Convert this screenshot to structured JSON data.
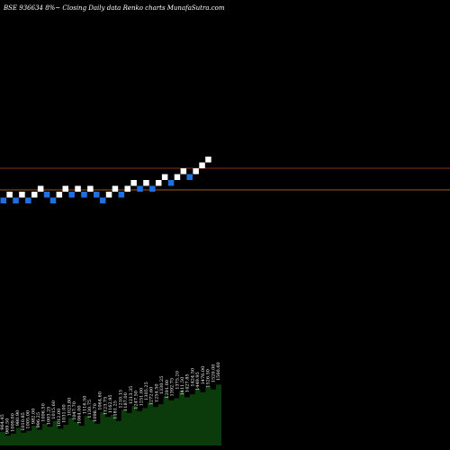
{
  "header": {
    "title": "BSE 936634  8%~  Closing Daily data  Renko  charts MunafaSutra.com"
  },
  "colors": {
    "background": "#000000",
    "up_brick": "#ffffff",
    "down_brick": "#1e6fe0",
    "resistance_line": "#c0392b",
    "support_line": "#d4771a",
    "volume_fill": "#0b3a0b"
  },
  "chart_data": {
    "type": "renko",
    "bricks": [
      {
        "dir": "down",
        "level": 0
      },
      {
        "dir": "up",
        "level": 1
      },
      {
        "dir": "down",
        "level": 0
      },
      {
        "dir": "up",
        "level": 1
      },
      {
        "dir": "down",
        "level": 0
      },
      {
        "dir": "up",
        "level": 1
      },
      {
        "dir": "up",
        "level": 2
      },
      {
        "dir": "down",
        "level": 1
      },
      {
        "dir": "down",
        "level": 0
      },
      {
        "dir": "up",
        "level": 1
      },
      {
        "dir": "up",
        "level": 2
      },
      {
        "dir": "down",
        "level": 1
      },
      {
        "dir": "up",
        "level": 2
      },
      {
        "dir": "down",
        "level": 1
      },
      {
        "dir": "up",
        "level": 2
      },
      {
        "dir": "down",
        "level": 1
      },
      {
        "dir": "down",
        "level": 0
      },
      {
        "dir": "up",
        "level": 1
      },
      {
        "dir": "up",
        "level": 2
      },
      {
        "dir": "down",
        "level": 1
      },
      {
        "dir": "up",
        "level": 2
      },
      {
        "dir": "up",
        "level": 3
      },
      {
        "dir": "down",
        "level": 2
      },
      {
        "dir": "up",
        "level": 3
      },
      {
        "dir": "down",
        "level": 2
      },
      {
        "dir": "up",
        "level": 3
      },
      {
        "dir": "up",
        "level": 4
      },
      {
        "dir": "down",
        "level": 3
      },
      {
        "dir": "up",
        "level": 4
      },
      {
        "dir": "up",
        "level": 5
      },
      {
        "dir": "down",
        "level": 4
      },
      {
        "dir": "up",
        "level": 5
      },
      {
        "dir": "up",
        "level": 6
      },
      {
        "dir": "up",
        "level": 7
      }
    ],
    "resistance_level": 5.6,
    "support_level": 1.5,
    "volume_labels": [
      "964.45",
      "969.50",
      "1009.00",
      "980.90",
      "1010.85",
      "1005.00",
      "982.00",
      "996.25",
      "1006.50",
      "1003.25",
      "1015.60",
      "1012.00",
      "1031.00",
      "1023.80",
      "1047.70",
      "1064.00",
      "1116.50",
      "1130.75",
      "1098.70",
      "1064.60",
      "1123.75",
      "1162.95",
      "1181.25",
      "1210.15",
      "1187.00",
      "1213.35",
      "1247.50",
      "1251.00",
      "1305.25",
      "1272.60",
      "1254.50",
      "1330.25",
      "1291.00",
      "1392.75",
      "1375.20",
      "1411.50",
      "1427.85",
      "1424.50",
      "1449.95",
      "1476.00",
      "1526.50",
      "1520.00",
      "1560.60"
    ],
    "volume_values": [
      14,
      10,
      12,
      18,
      13,
      15,
      20,
      16,
      22,
      19,
      25,
      17,
      21,
      28,
      24,
      20,
      30,
      26,
      22,
      34,
      29,
      31,
      25,
      36,
      33,
      40,
      35,
      38,
      44,
      39,
      42,
      50,
      46,
      48,
      55,
      49,
      52,
      58,
      54,
      60,
      57,
      62,
      64
    ]
  }
}
